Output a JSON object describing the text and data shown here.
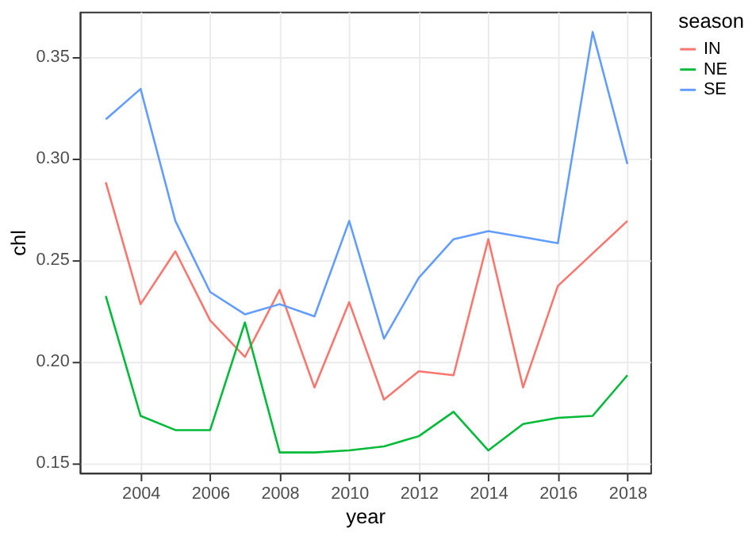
{
  "chart_data": {
    "type": "line",
    "xlabel": "year",
    "ylabel": "chl",
    "legend_title": "season",
    "x": [
      2003,
      2004,
      2005,
      2006,
      2007,
      2008,
      2009,
      2010,
      2011,
      2012,
      2013,
      2014,
      2015,
      2016,
      2017,
      2018
    ],
    "series": [
      {
        "name": "IN",
        "color": "#f8766d",
        "values": [
          0.288,
          0.228,
          0.254,
          0.22,
          0.202,
          0.235,
          0.187,
          0.229,
          0.181,
          0.195,
          0.193,
          0.26,
          0.187,
          0.237,
          0.253,
          0.269
        ]
      },
      {
        "name": "NE",
        "color": "#00ba38",
        "values": [
          0.232,
          0.173,
          0.166,
          0.166,
          0.219,
          0.155,
          0.155,
          0.156,
          0.158,
          0.163,
          0.175,
          0.156,
          0.169,
          0.172,
          0.173,
          0.193
        ]
      },
      {
        "name": "SE",
        "color": "#619cff",
        "values": [
          0.319,
          0.334,
          0.269,
          0.234,
          0.223,
          0.228,
          0.222,
          0.269,
          0.211,
          0.241,
          0.26,
          0.264,
          0.261,
          0.258,
          0.362,
          0.297
        ]
      }
    ],
    "xlim": [
      2002.25,
      2018.66
    ],
    "xticks": [
      2004,
      2006,
      2008,
      2010,
      2012,
      2014,
      2016,
      2018
    ],
    "ylim": [
      0.145,
      0.372
    ],
    "yticks": [
      {
        "value": 0.15,
        "label": "0.15"
      },
      {
        "value": 0.2,
        "label": "0.20"
      },
      {
        "value": 0.25,
        "label": "0.25"
      },
      {
        "value": 0.3,
        "label": "0.30"
      },
      {
        "value": 0.35,
        "label": "0.35"
      }
    ],
    "grid": true,
    "legend": "right",
    "marker": "none",
    "line_style": "solid"
  }
}
